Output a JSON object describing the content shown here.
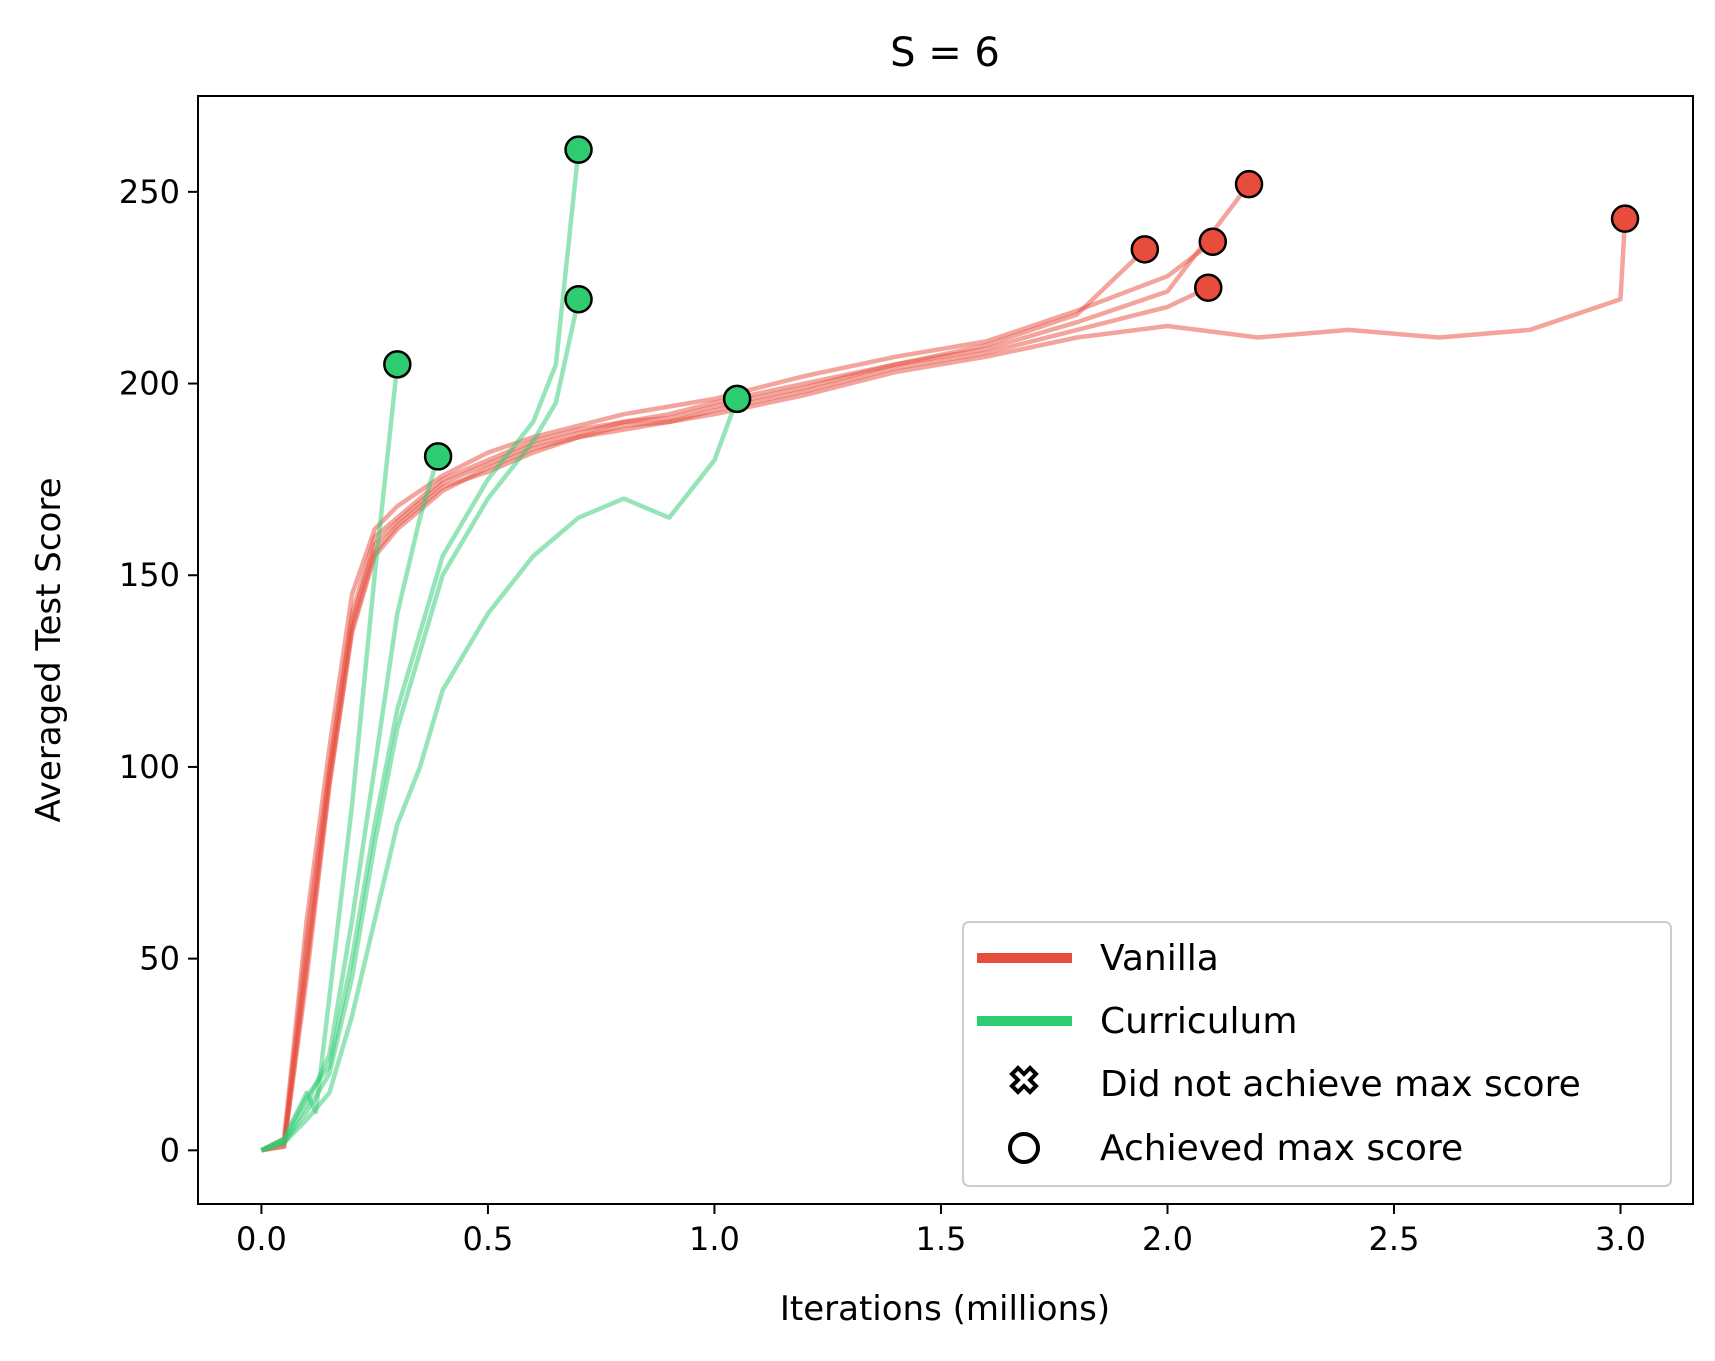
{
  "chart_data": {
    "type": "line",
    "title": "S = 6",
    "xlabel": "Iterations (millions)",
    "ylabel": "Averaged Test Score",
    "xlim": [
      -0.14,
      3.16
    ],
    "ylim": [
      -14,
      275
    ],
    "xticks": [
      0.0,
      0.5,
      1.0,
      1.5,
      2.0,
      2.5,
      3.0
    ],
    "xtick_labels": [
      "0.0",
      "0.5",
      "1.0",
      "1.5",
      "2.0",
      "2.5",
      "3.0"
    ],
    "yticks": [
      0,
      50,
      100,
      150,
      200,
      250
    ],
    "ytick_labels": [
      "0",
      "50",
      "100",
      "150",
      "200",
      "250"
    ],
    "grid": false,
    "legend_position": "bottom-right",
    "colors": {
      "vanilla": "#e74c3c",
      "curriculum": "#2ecc71"
    },
    "legend": [
      {
        "label": "Vanilla",
        "kind": "line",
        "color": "#e74c3c"
      },
      {
        "label": "Curriculum",
        "kind": "line",
        "color": "#2ecc71"
      },
      {
        "label": "Did not achieve max score",
        "kind": "x-marker"
      },
      {
        "label": "Achieved max score",
        "kind": "circle-marker"
      }
    ],
    "series": [
      {
        "group": "vanilla",
        "end_x": 1.95,
        "end_y": 235,
        "x": [
          0.0,
          0.05,
          0.1,
          0.15,
          0.2,
          0.25,
          0.3,
          0.4,
          0.5,
          0.6,
          0.7,
          0.8,
          0.9,
          1.0,
          1.2,
          1.4,
          1.6,
          1.8,
          1.95
        ],
        "y": [
          0,
          2,
          55,
          100,
          140,
          160,
          165,
          175,
          180,
          185,
          188,
          190,
          192,
          195,
          200,
          205,
          210,
          218,
          235
        ]
      },
      {
        "group": "vanilla",
        "end_x": 2.09,
        "end_y": 225,
        "x": [
          0.0,
          0.05,
          0.1,
          0.15,
          0.2,
          0.25,
          0.3,
          0.4,
          0.5,
          0.6,
          0.7,
          0.8,
          0.9,
          1.0,
          1.2,
          1.4,
          1.6,
          1.8,
          2.0,
          2.09
        ],
        "y": [
          0,
          1,
          45,
          95,
          135,
          155,
          162,
          172,
          178,
          183,
          186,
          188,
          190,
          193,
          198,
          204,
          208,
          214,
          220,
          225
        ]
      },
      {
        "group": "vanilla",
        "end_x": 2.1,
        "end_y": 237,
        "x": [
          0.0,
          0.05,
          0.1,
          0.15,
          0.2,
          0.25,
          0.3,
          0.4,
          0.5,
          0.6,
          0.7,
          0.8,
          0.9,
          1.0,
          1.2,
          1.4,
          1.6,
          1.8,
          2.0,
          2.1
        ],
        "y": [
          0,
          3,
          60,
          105,
          145,
          162,
          168,
          176,
          182,
          186,
          189,
          192,
          194,
          196,
          202,
          207,
          211,
          219,
          228,
          237
        ]
      },
      {
        "group": "vanilla",
        "end_x": 2.18,
        "end_y": 252,
        "x": [
          0.0,
          0.05,
          0.1,
          0.15,
          0.2,
          0.25,
          0.3,
          0.4,
          0.5,
          0.6,
          0.7,
          0.8,
          0.9,
          1.0,
          1.2,
          1.4,
          1.6,
          1.8,
          2.0,
          2.18
        ],
        "y": [
          0,
          2,
          50,
          98,
          138,
          158,
          164,
          174,
          179,
          184,
          187,
          190,
          191,
          194,
          199,
          205,
          209,
          216,
          224,
          252
        ]
      },
      {
        "group": "vanilla",
        "end_x": 3.01,
        "end_y": 243,
        "x": [
          0.0,
          0.05,
          0.1,
          0.15,
          0.2,
          0.25,
          0.3,
          0.4,
          0.5,
          0.6,
          0.7,
          0.8,
          0.9,
          1.0,
          1.2,
          1.4,
          1.6,
          1.8,
          2.0,
          2.2,
          2.4,
          2.6,
          2.8,
          3.0,
          3.01
        ],
        "y": [
          0,
          1,
          48,
          96,
          136,
          156,
          163,
          173,
          177,
          182,
          186,
          189,
          190,
          192,
          197,
          203,
          207,
          212,
          215,
          212,
          214,
          212,
          214,
          222,
          243
        ]
      },
      {
        "group": "curriculum",
        "end_x": 0.3,
        "end_y": 205,
        "x": [
          0.0,
          0.05,
          0.1,
          0.12,
          0.15,
          0.2,
          0.25,
          0.3
        ],
        "y": [
          0,
          3,
          15,
          10,
          40,
          90,
          150,
          205
        ]
      },
      {
        "group": "curriculum",
        "end_x": 0.39,
        "end_y": 181,
        "x": [
          0.0,
          0.05,
          0.1,
          0.15,
          0.2,
          0.25,
          0.3,
          0.35,
          0.39
        ],
        "y": [
          0,
          2,
          12,
          25,
          60,
          100,
          140,
          165,
          181
        ]
      },
      {
        "group": "curriculum",
        "end_x": 0.7,
        "end_y": 222,
        "x": [
          0.0,
          0.05,
          0.1,
          0.15,
          0.2,
          0.25,
          0.3,
          0.35,
          0.4,
          0.5,
          0.6,
          0.65,
          0.7
        ],
        "y": [
          0,
          2,
          10,
          20,
          45,
          80,
          110,
          130,
          150,
          170,
          185,
          195,
          222
        ]
      },
      {
        "group": "curriculum",
        "end_x": 0.7,
        "end_y": 261,
        "x": [
          0.0,
          0.05,
          0.1,
          0.15,
          0.2,
          0.25,
          0.3,
          0.35,
          0.4,
          0.5,
          0.6,
          0.65,
          0.7
        ],
        "y": [
          0,
          3,
          14,
          22,
          50,
          85,
          115,
          135,
          155,
          175,
          190,
          205,
          261
        ]
      },
      {
        "group": "curriculum",
        "end_x": 1.05,
        "end_y": 196,
        "x": [
          0.0,
          0.05,
          0.1,
          0.15,
          0.2,
          0.25,
          0.3,
          0.35,
          0.4,
          0.5,
          0.6,
          0.7,
          0.8,
          0.9,
          1.0,
          1.05
        ],
        "y": [
          0,
          2,
          8,
          15,
          35,
          60,
          85,
          100,
          120,
          140,
          155,
          165,
          170,
          165,
          180,
          196
        ]
      }
    ]
  }
}
